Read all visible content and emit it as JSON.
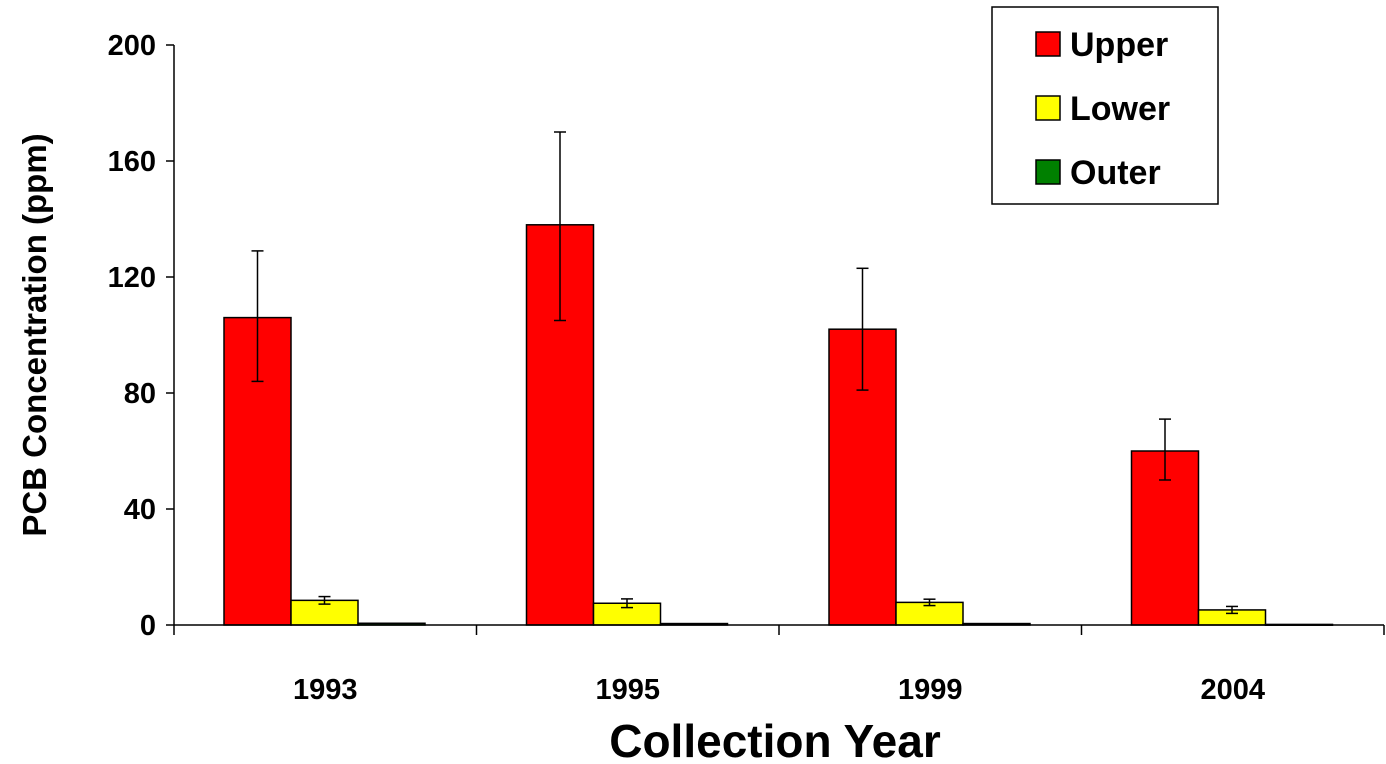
{
  "chart_data": {
    "type": "bar",
    "title": "",
    "xlabel": "Collection Year",
    "ylabel": "PCB Concentration (ppm)",
    "categories": [
      "1993",
      "1995",
      "1999",
      "2004"
    ],
    "ylim": [
      0,
      200
    ],
    "yticks": [
      0,
      40,
      80,
      120,
      160,
      200
    ],
    "grid": false,
    "legend_position": "top-right",
    "series": [
      {
        "name": "Upper",
        "color": "#ff0000",
        "values": [
          106,
          138,
          102,
          60
        ],
        "error": [
          [
            22,
            23
          ],
          [
            33,
            32
          ],
          [
            21,
            21
          ],
          [
            10,
            11
          ]
        ]
      },
      {
        "name": "Lower",
        "color": "#ffff00",
        "values": [
          8.5,
          7.5,
          7.8,
          5.2
        ],
        "error": [
          [
            1.3,
            1.3
          ],
          [
            1.5,
            1.5
          ],
          [
            1.1,
            1.1
          ],
          [
            1.2,
            1.2
          ]
        ]
      },
      {
        "name": "Outer",
        "color": "#008000",
        "values": [
          0.6,
          0.5,
          0.5,
          0.2
        ],
        "error": [
          [
            0,
            0
          ],
          [
            0,
            0
          ],
          [
            0,
            0
          ],
          [
            0,
            0
          ]
        ]
      }
    ]
  }
}
